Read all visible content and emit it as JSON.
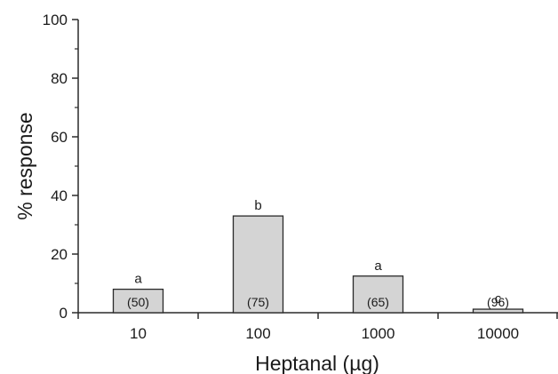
{
  "chart_data": {
    "type": "bar",
    "title": "",
    "xlabel": "Heptanal (µg)",
    "ylabel": "% response",
    "ylim": [
      0,
      100
    ],
    "yticks": [
      "0",
      "20",
      "40",
      "60",
      "80",
      "100"
    ],
    "categories": [
      "10",
      "100",
      "1000",
      "10000"
    ],
    "values": [
      8,
      33,
      12.5,
      1.2
    ],
    "group_letters": [
      "a",
      "b",
      "a",
      "c"
    ],
    "sample_sizes": [
      "(50)",
      "(75)",
      "(65)",
      "(96)"
    ],
    "grid": false,
    "legend": "none",
    "colors": {
      "bar_fill": "#d4d4d4",
      "bar_stroke": "#2a2a2a",
      "axis": "#2a2a2a"
    }
  }
}
